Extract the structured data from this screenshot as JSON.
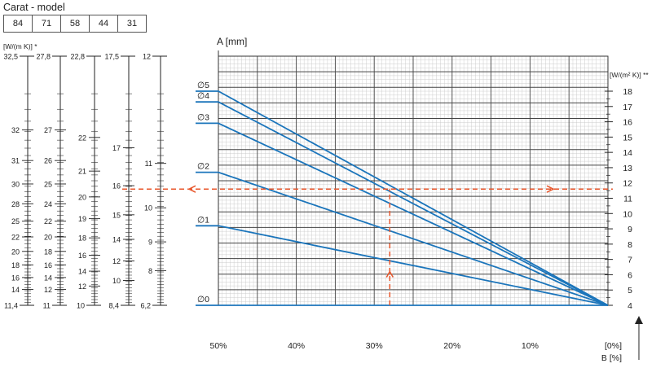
{
  "model_table": {
    "title": "Carat - model",
    "values": [
      "84",
      "71",
      "58",
      "44",
      "31"
    ]
  },
  "chart_data": {
    "type": "line",
    "y_title": "A [mm]",
    "right_axis_title": "[W/(m² K)] **",
    "x_title": "B [%]",
    "x_tick_labels": [
      "50%",
      "40%",
      "30%",
      "20%",
      "10%",
      "[0%]"
    ],
    "x_ticks": [
      50,
      40,
      30,
      20,
      10,
      0
    ],
    "xlim": [
      50,
      0
    ],
    "right_axis_ticks": [
      4,
      5,
      6,
      7,
      8,
      9,
      10,
      11,
      12,
      13,
      14,
      15,
      16,
      17,
      18
    ],
    "right_axis_range": [
      4,
      18.3
    ],
    "series": [
      {
        "name": "∅0",
        "points": [
          [
            52.5,
            4.0
          ],
          [
            50,
            4.0
          ],
          [
            0,
            4.0
          ]
        ]
      },
      {
        "name": "∅1",
        "points": [
          [
            52.5,
            9.2
          ],
          [
            50,
            9.2
          ],
          [
            0,
            4.0
          ]
        ]
      },
      {
        "name": "∅2",
        "points": [
          [
            52.5,
            12.7
          ],
          [
            50,
            12.7
          ],
          [
            0,
            4.0
          ]
        ]
      },
      {
        "name": "∅3",
        "points": [
          [
            52.5,
            15.9
          ],
          [
            50,
            15.9
          ],
          [
            0,
            4.0
          ]
        ]
      },
      {
        "name": "∅4",
        "points": [
          [
            52.5,
            17.3
          ],
          [
            50,
            17.3
          ],
          [
            0,
            4.0
          ]
        ]
      },
      {
        "name": "∅5",
        "points": [
          [
            52.5,
            18.0
          ],
          [
            50,
            18.0
          ],
          [
            0,
            4.0
          ]
        ]
      }
    ],
    "guide": {
      "vertical_x": 28,
      "horizontal_value": 11.6,
      "vertical_from": 4.0,
      "vertical_to": 11.6,
      "horizontal_from": 0,
      "horizontal_to": 28
    },
    "left_scales": {
      "header": "[W/(m K)] *",
      "columns": [
        {
          "top": "32,5",
          "bottom": "11,4",
          "labels": [
            "32",
            "31",
            "30",
            "28",
            "25",
            "22",
            "20",
            "18",
            "16",
            "14"
          ]
        },
        {
          "top": "27,8",
          "bottom": "11",
          "labels": [
            "27",
            "26",
            "25",
            "24",
            "22",
            "20",
            "18",
            "16",
            "14",
            "12"
          ]
        },
        {
          "top": "22,8",
          "bottom": "10",
          "labels": [
            "22",
            "21",
            "20",
            "19",
            "18",
            "16",
            "14",
            "12"
          ]
        },
        {
          "top": "17,5",
          "bottom": "8,4",
          "labels": [
            "17",
            "16",
            "15",
            "14",
            "12",
            "10"
          ]
        },
        {
          "top": "12",
          "bottom": "6,2",
          "labels": [
            "11",
            "10",
            "9",
            "8"
          ]
        }
      ]
    }
  }
}
